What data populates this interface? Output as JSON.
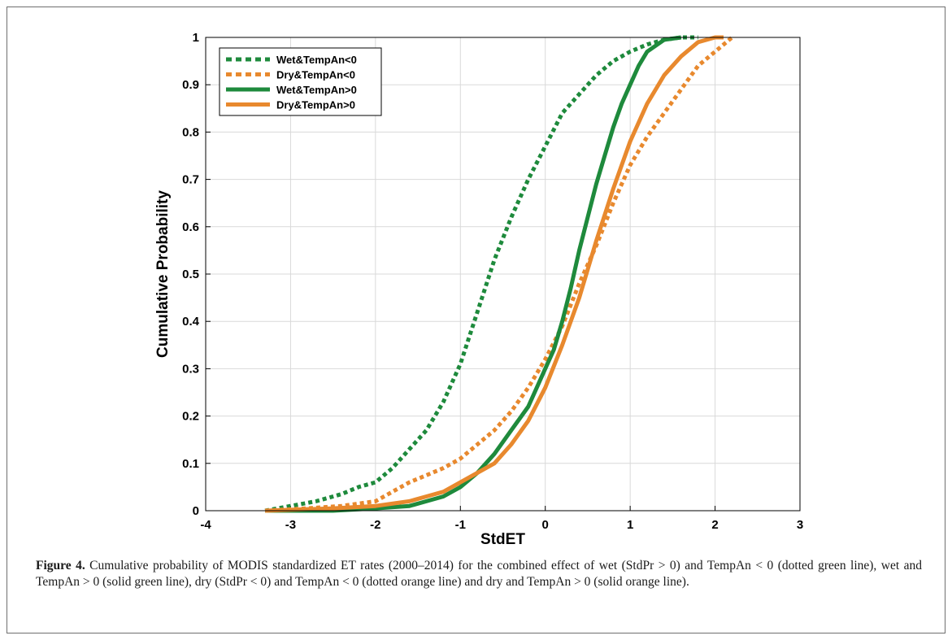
{
  "chart_data": {
    "type": "line",
    "xlabel": "StdET",
    "ylabel": "Cumulative Probability",
    "xlim": [
      -4,
      3
    ],
    "ylim": [
      0,
      1
    ],
    "xticks": [
      "-4",
      "-3",
      "-2",
      "-1",
      "0",
      "1",
      "2",
      "3"
    ],
    "yticks": [
      "0",
      "0.1",
      "0.2",
      "0.3",
      "0.4",
      "0.5",
      "0.6",
      "0.7",
      "0.8",
      "0.9",
      "1"
    ],
    "grid": true,
    "legend_position": "top-left",
    "series": [
      {
        "name": "Wet&TempAn<0",
        "color": "#1e8a3c",
        "style": "dotted",
        "x": [
          -3.3,
          -3.0,
          -2.7,
          -2.4,
          -2.2,
          -2.0,
          -1.8,
          -1.6,
          -1.4,
          -1.2,
          -1.0,
          -0.8,
          -0.6,
          -0.4,
          -0.2,
          0.0,
          0.2,
          0.4,
          0.6,
          0.8,
          1.0,
          1.2,
          1.4,
          1.6,
          1.8
        ],
        "y": [
          0.0,
          0.01,
          0.02,
          0.035,
          0.05,
          0.06,
          0.09,
          0.13,
          0.17,
          0.23,
          0.31,
          0.42,
          0.53,
          0.62,
          0.7,
          0.77,
          0.84,
          0.88,
          0.92,
          0.95,
          0.97,
          0.985,
          0.995,
          1.0,
          1.0
        ]
      },
      {
        "name": "Dry&TempAn<0",
        "color": "#e8892e",
        "style": "dotted",
        "x": [
          -3.3,
          -2.8,
          -2.4,
          -2.0,
          -1.8,
          -1.6,
          -1.4,
          -1.2,
          -1.0,
          -0.8,
          -0.6,
          -0.4,
          -0.2,
          0.0,
          0.2,
          0.4,
          0.6,
          0.8,
          1.0,
          1.2,
          1.4,
          1.6,
          1.8,
          2.0,
          2.2
        ],
        "y": [
          0.0,
          0.005,
          0.01,
          0.02,
          0.04,
          0.06,
          0.075,
          0.09,
          0.11,
          0.14,
          0.17,
          0.21,
          0.26,
          0.32,
          0.39,
          0.48,
          0.56,
          0.65,
          0.73,
          0.79,
          0.84,
          0.89,
          0.94,
          0.97,
          1.0
        ]
      },
      {
        "name": "Wet&TempAn>0",
        "color": "#1e8a3c",
        "style": "solid",
        "x": [
          -3.3,
          -2.5,
          -2.0,
          -1.6,
          -1.4,
          -1.2,
          -1.0,
          -0.8,
          -0.6,
          -0.4,
          -0.2,
          0.0,
          0.1,
          0.2,
          0.3,
          0.4,
          0.5,
          0.6,
          0.7,
          0.8,
          0.9,
          1.0,
          1.1,
          1.2,
          1.4,
          1.6
        ],
        "y": [
          0.0,
          0.0,
          0.005,
          0.01,
          0.02,
          0.03,
          0.05,
          0.08,
          0.12,
          0.17,
          0.22,
          0.3,
          0.34,
          0.4,
          0.47,
          0.55,
          0.62,
          0.69,
          0.75,
          0.81,
          0.86,
          0.9,
          0.94,
          0.97,
          0.995,
          1.0
        ]
      },
      {
        "name": "Dry&TempAn>0",
        "color": "#e8892e",
        "style": "solid",
        "x": [
          -3.3,
          -2.5,
          -2.0,
          -1.6,
          -1.4,
          -1.2,
          -1.0,
          -0.8,
          -0.6,
          -0.4,
          -0.2,
          0.0,
          0.2,
          0.4,
          0.6,
          0.8,
          1.0,
          1.2,
          1.4,
          1.6,
          1.8,
          2.0,
          2.1
        ],
        "y": [
          0.0,
          0.005,
          0.01,
          0.02,
          0.03,
          0.04,
          0.06,
          0.08,
          0.1,
          0.14,
          0.19,
          0.26,
          0.35,
          0.45,
          0.57,
          0.68,
          0.78,
          0.86,
          0.92,
          0.96,
          0.99,
          1.0,
          1.0
        ]
      }
    ]
  },
  "caption": {
    "label": "Figure 4.",
    "text": " Cumulative probability of MODIS standardized ET rates (2000–2014) for the combined effect of wet (StdPr > 0) and TempAn < 0 (dotted green line), wet and TempAn > 0 (solid green line), dry (StdPr < 0) and TempAn < 0 (dotted orange line) and dry and TempAn > 0 (solid orange line)."
  }
}
